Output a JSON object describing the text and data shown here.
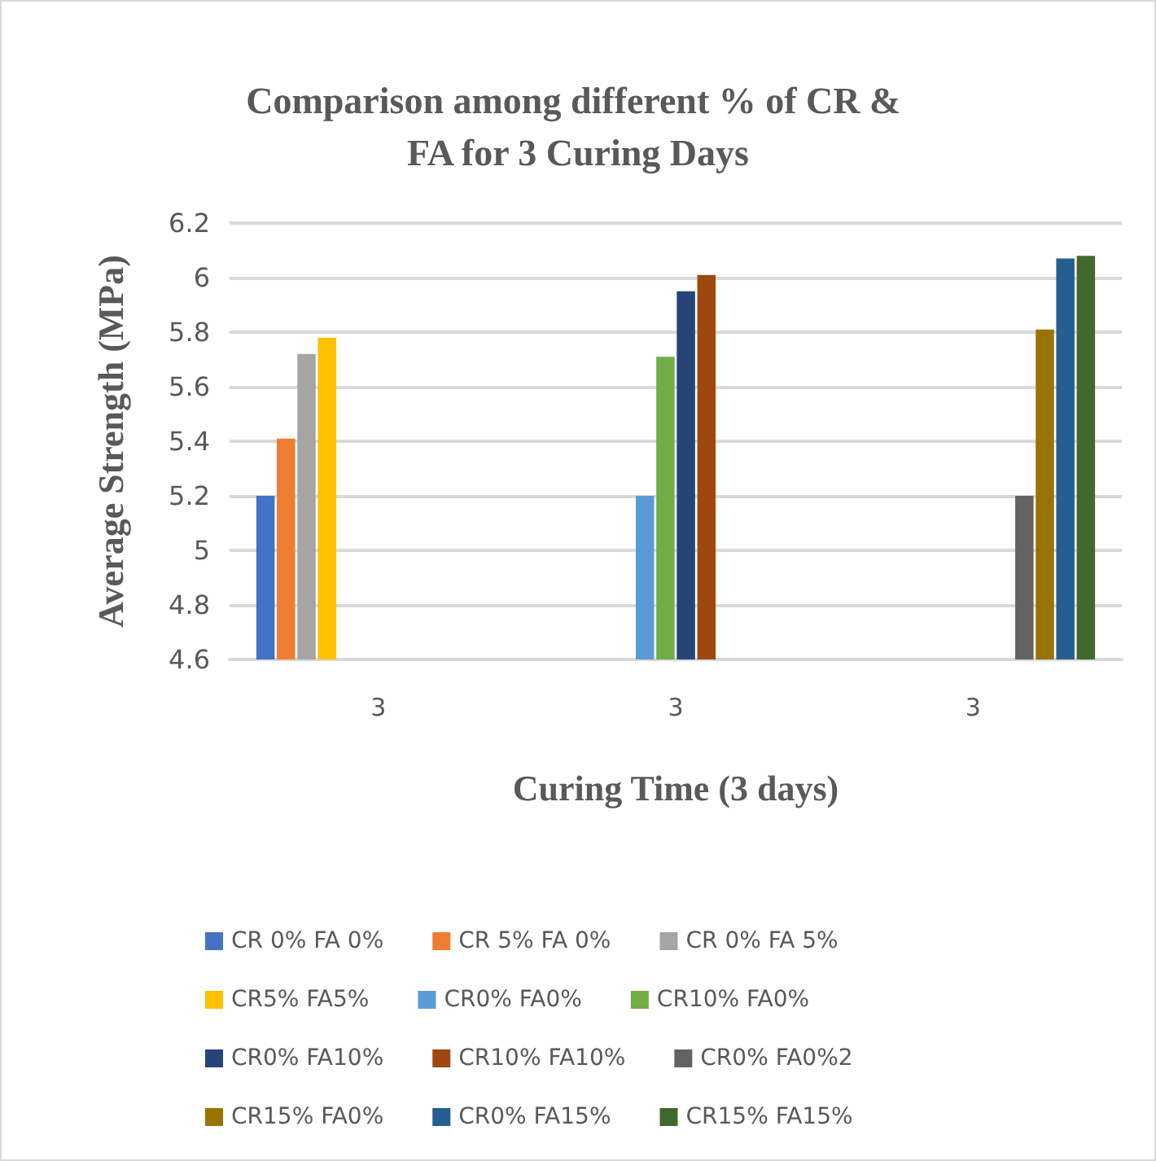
{
  "chart_data": {
    "type": "bar",
    "title": "Comparison among different % of CR & FA for 3 Curing Days",
    "xlabel": "Curing Time (3 days)",
    "ylabel": "Average Strength (MPa)",
    "categories": [
      "3",
      "3",
      "3"
    ],
    "series": [
      {
        "name": "CR 0% FA 0%",
        "color": "#4472c4",
        "values": [
          5.2,
          null,
          null
        ]
      },
      {
        "name": "CR 5% FA 0%",
        "color": "#ed7d31",
        "values": [
          5.41,
          null,
          null
        ]
      },
      {
        "name": "CR 0% FA 5%",
        "color": "#a5a5a5",
        "values": [
          5.72,
          null,
          null
        ]
      },
      {
        "name": "CR5% FA5%",
        "color": "#ffc000",
        "values": [
          5.78,
          null,
          null
        ]
      },
      {
        "name": "CR0% FA0%",
        "color": "#5b9bd5",
        "values": [
          null,
          5.2,
          null
        ]
      },
      {
        "name": "CR10% FA0%",
        "color": "#70ad47",
        "values": [
          null,
          5.71,
          null
        ]
      },
      {
        "name": "CR0% FA10%",
        "color": "#264478",
        "values": [
          null,
          5.95,
          null
        ]
      },
      {
        "name": "CR10% FA10%",
        "color": "#9e480e",
        "values": [
          null,
          6.01,
          null
        ]
      },
      {
        "name": "CR0% FA0%2",
        "color": "#636363",
        "values": [
          null,
          null,
          5.2
        ]
      },
      {
        "name": "CR15% FA0%",
        "color": "#997300",
        "values": [
          null,
          null,
          5.81
        ]
      },
      {
        "name": "CR0% FA15%",
        "color": "#255e91",
        "values": [
          null,
          null,
          6.07
        ]
      },
      {
        "name": "CR15% FA15%",
        "color": "#43682b",
        "values": [
          null,
          null,
          6.08
        ]
      }
    ],
    "ylim": [
      4.6,
      6.2
    ],
    "yticks": [
      4.6,
      4.8,
      5,
      5.2,
      5.4,
      5.6,
      5.8,
      6,
      6.2
    ],
    "grid": "y",
    "legend": "bottom"
  }
}
